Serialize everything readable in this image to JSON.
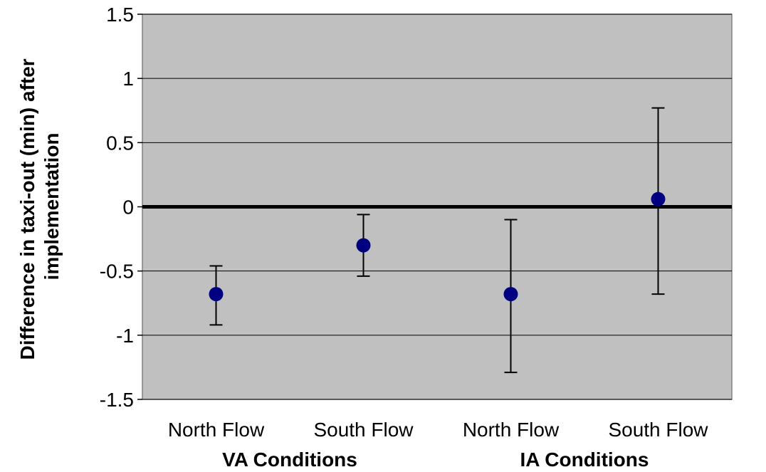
{
  "chart_data": {
    "type": "scatter",
    "title": "",
    "ylabel_lines": [
      "Difference in taxi-out (min) after",
      "implementation"
    ],
    "xlabel": "",
    "ylim": [
      -1.5,
      1.5
    ],
    "yticks": [
      -1.5,
      -1,
      -0.5,
      0,
      0.5,
      1,
      1.5
    ],
    "ytick_labels": [
      "-1.5",
      "-1",
      "-0.5",
      "0",
      "0.5",
      "1",
      "1.5"
    ],
    "categories": [
      "North Flow",
      "South Flow",
      "North Flow",
      "South Flow"
    ],
    "groups": [
      {
        "label": "VA Conditions",
        "categories": [
          0,
          1
        ]
      },
      {
        "label": "IA Conditions",
        "categories": [
          2,
          3
        ]
      }
    ],
    "points": [
      {
        "category": "North Flow",
        "group": "VA Conditions",
        "y": -0.68,
        "err_low": -0.92,
        "err_high": -0.46
      },
      {
        "category": "South Flow",
        "group": "VA Conditions",
        "y": -0.3,
        "err_low": -0.54,
        "err_high": -0.06
      },
      {
        "category": "North Flow",
        "group": "IA Conditions",
        "y": -0.68,
        "err_low": -1.29,
        "err_high": -0.1
      },
      {
        "category": "South Flow",
        "group": "IA Conditions",
        "y": 0.06,
        "err_low": -0.68,
        "err_high": 0.77
      }
    ],
    "grid": true,
    "zero_line": true,
    "colors": {
      "plot_background": "#c0c0c0",
      "marker": "#000080",
      "gridline": "#000000",
      "zero_line": "#000000",
      "error_bar": "#000000"
    }
  }
}
